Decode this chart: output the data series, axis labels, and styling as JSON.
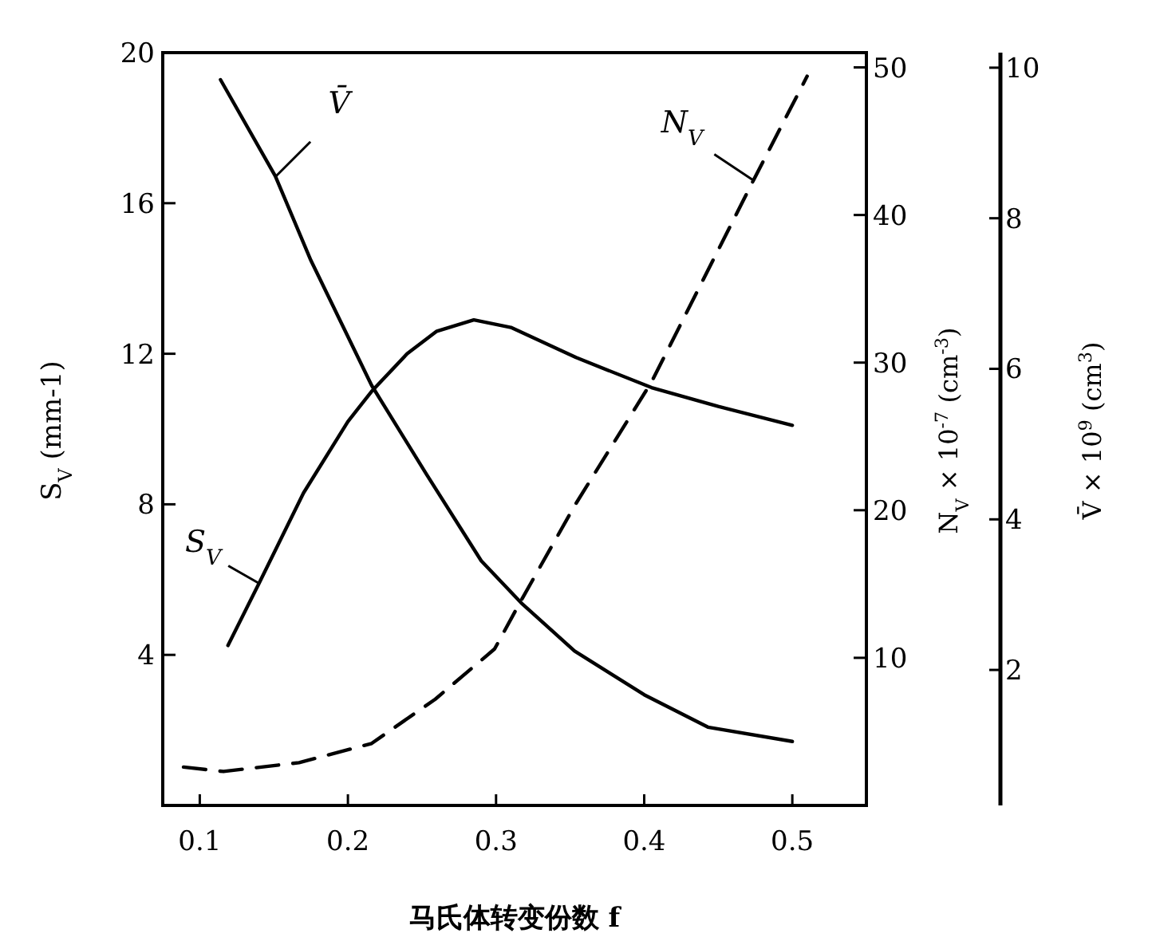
{
  "chart_data": {
    "type": "line",
    "xlabel": "马氏体转变份数 f",
    "ylabel": "S$_{V}$ (mm-1)",
    "y2label": "N$_{V}$ × 10$^{-7}$ (cm$^{-3}$)",
    "y3label": "V̄ × 10$^{9}$ (cm$^{3}$)",
    "xlim": [
      0.075,
      0.55
    ],
    "xticks": [
      0.1,
      0.2,
      0.3,
      0.4,
      0.5
    ],
    "ylim": [
      0,
      20
    ],
    "yticks": [
      4,
      8,
      12,
      16,
      20
    ],
    "y2lim": [
      0,
      51
    ],
    "y2ticks": [
      10,
      20,
      30,
      40,
      50
    ],
    "y3lim": [
      0.2,
      10.2
    ],
    "y3ticks": [
      2,
      4,
      6,
      8,
      10
    ],
    "series": [
      {
        "color": "#000000",
        "axis": "y",
        "line_style": "solid",
        "x": [
          0.119,
          0.14,
          0.17,
          0.2,
          0.216,
          0.24,
          0.26,
          0.285,
          0.31,
          0.354,
          0.405,
          0.45,
          0.5
        ],
        "values": [
          4.25,
          5.9,
          8.3,
          10.2,
          11.0,
          12.0,
          12.6,
          12.9,
          12.7,
          11.9,
          11.1,
          10.6,
          10.1
        ]
      },
      {
        "color": "#000000",
        "axis": "y3",
        "line_style": "solid",
        "x": [
          0.114,
          0.151,
          0.175,
          0.216,
          0.253,
          0.29,
          0.317,
          0.353,
          0.4,
          0.443,
          0.5
        ],
        "values": [
          9.84,
          8.56,
          7.44,
          5.78,
          4.6,
          3.45,
          2.89,
          2.25,
          1.67,
          1.24,
          1.05
        ]
      },
      {
        "color": "#000000",
        "axis": "y2",
        "line_style": "dashed",
        "x": [
          0.089,
          0.116,
          0.167,
          0.216,
          0.259,
          0.299,
          0.317,
          0.353,
          0.405,
          0.474,
          0.51
        ],
        "values": [
          2.6,
          2.3,
          2.9,
          4.2,
          7.2,
          10.6,
          13.9,
          20.3,
          28.7,
          42.4,
          49.4
        ]
      }
    ],
    "annotations": [
      {
        "text": "S$_{V}$",
        "x": 0.14,
        "y": 5.9
      },
      {
        "text": "V̄",
        "x": 0.151,
        "y": 16.7
      },
      {
        "text": "N$_{V}$",
        "x": 0.474,
        "y": 16.6
      }
    ]
  }
}
